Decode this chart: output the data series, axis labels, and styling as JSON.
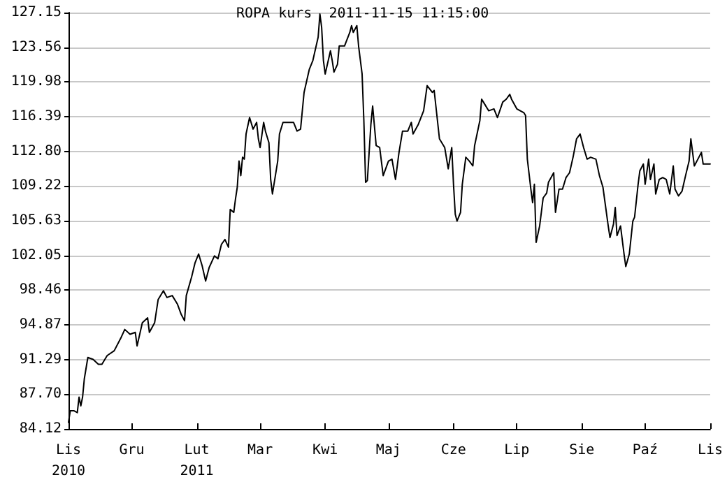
{
  "chart_data": {
    "type": "line",
    "title": "ROPA kurs  2011-11-15 11:15:00",
    "x": [
      "2010-11-15",
      "2010-11-16",
      "2010-11-18",
      "2010-11-20",
      "2010-11-21",
      "2010-11-22",
      "2010-11-23",
      "2010-11-24",
      "2010-11-26",
      "2010-11-29",
      "2010-12-02",
      "2010-12-04",
      "2010-12-07",
      "2010-12-11",
      "2010-12-15",
      "2010-12-17",
      "2010-12-20",
      "2010-12-23",
      "2010-12-24",
      "2010-12-27",
      "2010-12-30",
      "2010-12-31",
      "2011-01-03",
      "2011-01-05",
      "2011-01-08",
      "2011-01-10",
      "2011-01-13",
      "2011-01-16",
      "2011-01-18",
      "2011-01-20",
      "2011-01-21",
      "2011-01-24",
      "2011-01-26",
      "2011-01-28",
      "2011-01-30",
      "2011-02-01",
      "2011-02-03",
      "2011-02-06",
      "2011-02-08",
      "2011-02-10",
      "2011-02-12",
      "2011-02-14",
      "2011-02-15",
      "2011-02-17",
      "2011-02-18",
      "2011-02-19",
      "2011-02-20",
      "2011-02-21",
      "2011-02-22",
      "2011-02-23",
      "2011-02-24",
      "2011-02-26",
      "2011-02-28",
      "2011-03-02",
      "2011-03-03",
      "2011-03-04",
      "2011-03-06",
      "2011-03-07",
      "2011-03-09",
      "2011-03-10",
      "2011-03-11",
      "2011-03-14",
      "2011-03-15",
      "2011-03-17",
      "2011-03-23",
      "2011-03-25",
      "2011-03-27",
      "2011-03-29",
      "2011-04-01",
      "2011-04-03",
      "2011-04-06",
      "2011-04-07",
      "2011-04-08",
      "2011-04-09",
      "2011-04-10",
      "2011-04-13",
      "2011-04-14",
      "2011-04-15",
      "2011-04-17",
      "2011-04-18",
      "2011-04-21",
      "2011-04-24",
      "2011-04-25",
      "2011-04-26",
      "2011-04-28",
      "2011-04-29",
      "2011-05-01",
      "2011-05-02",
      "2011-05-03",
      "2011-05-04",
      "2011-05-06",
      "2011-05-07",
      "2011-05-09",
      "2011-05-11",
      "2011-05-13",
      "2011-05-16",
      "2011-05-18",
      "2011-05-20",
      "2011-05-22",
      "2011-05-24",
      "2011-05-27",
      "2011-05-29",
      "2011-05-30",
      "2011-06-02",
      "2011-06-05",
      "2011-06-07",
      "2011-06-10",
      "2011-06-11",
      "2011-06-14",
      "2011-06-17",
      "2011-06-19",
      "2011-06-21",
      "2011-06-22",
      "2011-06-23",
      "2011-06-24",
      "2011-06-26",
      "2011-06-27",
      "2011-06-29",
      "2011-07-01",
      "2011-07-03",
      "2011-07-04",
      "2011-07-07",
      "2011-07-08",
      "2011-07-09",
      "2011-07-12",
      "2011-07-15",
      "2011-07-17",
      "2011-07-20",
      "2011-07-22",
      "2011-07-24",
      "2011-07-25",
      "2011-07-28",
      "2011-07-30",
      "2011-08-01",
      "2011-08-02",
      "2011-08-03",
      "2011-08-05",
      "2011-08-06",
      "2011-08-07",
      "2011-08-08",
      "2011-08-10",
      "2011-08-12",
      "2011-08-14",
      "2011-08-15",
      "2011-08-18",
      "2011-08-19",
      "2011-08-21",
      "2011-08-23",
      "2011-08-25",
      "2011-08-27",
      "2011-08-29",
      "2011-08-31",
      "2011-09-02",
      "2011-09-04",
      "2011-09-06",
      "2011-09-08",
      "2011-09-11",
      "2011-09-13",
      "2011-09-15",
      "2011-09-18",
      "2011-09-19",
      "2011-09-21",
      "2011-09-22",
      "2011-09-23",
      "2011-09-25",
      "2011-09-27",
      "2011-09-28",
      "2011-09-30",
      "2011-10-02",
      "2011-10-03",
      "2011-10-05",
      "2011-10-06",
      "2011-10-08",
      "2011-10-09",
      "2011-10-11",
      "2011-10-12",
      "2011-10-14",
      "2011-10-15",
      "2011-10-17",
      "2011-10-19",
      "2011-10-21",
      "2011-10-23",
      "2011-10-25",
      "2011-10-26",
      "2011-10-28",
      "2011-10-30",
      "2011-11-01",
      "2011-11-03",
      "2011-11-04",
      "2011-11-06",
      "2011-11-08",
      "2011-11-10",
      "2011-11-11",
      "2011-11-14",
      "2011-11-15"
    ],
    "values": [
      84.8,
      86.0,
      86.0,
      85.8,
      87.4,
      86.5,
      87.4,
      89.3,
      91.5,
      91.3,
      90.8,
      90.8,
      91.7,
      92.2,
      93.6,
      94.4,
      93.9,
      94.1,
      92.7,
      95.1,
      95.6,
      94.1,
      95.1,
      97.5,
      98.4,
      97.7,
      97.9,
      97.0,
      96.0,
      95.3,
      97.9,
      99.8,
      101.3,
      102.2,
      101.0,
      99.4,
      100.8,
      102.0,
      101.7,
      103.2,
      103.7,
      102.9,
      106.8,
      106.5,
      107.9,
      109.1,
      111.8,
      110.3,
      112.2,
      112.0,
      114.6,
      116.3,
      115.1,
      115.8,
      114.1,
      113.2,
      115.8,
      114.9,
      113.7,
      109.9,
      108.4,
      111.8,
      114.6,
      115.8,
      115.8,
      114.9,
      115.1,
      118.9,
      121.3,
      122.2,
      124.6,
      127.0,
      125.6,
      122.2,
      120.8,
      123.2,
      122.2,
      121.0,
      121.8,
      123.7,
      123.7,
      125.1,
      125.8,
      125.1,
      125.8,
      123.7,
      120.8,
      116.0,
      109.6,
      109.8,
      115.6,
      117.5,
      113.4,
      113.2,
      110.3,
      111.8,
      112.0,
      109.9,
      112.7,
      114.9,
      114.9,
      115.8,
      114.6,
      115.6,
      117.0,
      119.6,
      118.9,
      119.1,
      114.1,
      113.2,
      111.0,
      113.2,
      109.4,
      106.3,
      105.6,
      106.5,
      109.4,
      112.2,
      111.8,
      111.3,
      113.4,
      116.0,
      118.2,
      117.9,
      117.0,
      117.2,
      116.3,
      117.9,
      118.2,
      118.7,
      118.2,
      117.2,
      117.0,
      116.8,
      116.5,
      112.0,
      108.9,
      107.5,
      109.4,
      103.4,
      105.1,
      108.0,
      108.5,
      109.6,
      110.6,
      106.5,
      108.9,
      108.9,
      110.1,
      110.6,
      112.2,
      114.1,
      114.6,
      113.2,
      112.0,
      112.2,
      112.0,
      110.3,
      109.1,
      105.1,
      103.9,
      105.3,
      107.0,
      104.1,
      105.1,
      102.2,
      100.9,
      102.2,
      105.6,
      106.0,
      109.4,
      110.8,
      111.5,
      109.4,
      112.0,
      109.9,
      111.5,
      108.4,
      109.9,
      110.1,
      109.9,
      108.4,
      111.3,
      108.9,
      108.2,
      108.7,
      110.3,
      111.8,
      114.1,
      111.3,
      112.0,
      112.7,
      111.5,
      111.5,
      111.5
    ],
    "color": "#000000",
    "xlim": [
      "2010-11-15",
      "2011-11-15"
    ],
    "xticks": [
      {
        "value": "2010-11-15",
        "label": "Lis\n2010"
      },
      {
        "value": "2010-12-21",
        "label": "Gru"
      },
      {
        "value": "2011-01-27",
        "label": "Lut\n2011"
      },
      {
        "value": "2011-03-04",
        "label": "Mar"
      },
      {
        "value": "2011-04-10",
        "label": "Kwi"
      },
      {
        "value": "2011-05-16",
        "label": "Maj"
      },
      {
        "value": "2011-06-22",
        "label": "Cze"
      },
      {
        "value": "2011-07-28",
        "label": "Lip"
      },
      {
        "value": "2011-09-03",
        "label": "Sie"
      },
      {
        "value": "2011-10-09",
        "label": "Paź"
      },
      {
        "value": "2011-11-15",
        "label": "Lis"
      }
    ],
    "ylim": [
      84.12,
      127.15
    ],
    "yticks": [
      84.12,
      {
        "value": 87.7,
        "label": "87.70"
      },
      91.29,
      94.87,
      98.46,
      102.05,
      105.63,
      109.22,
      {
        "value": 112.8,
        "label": "112.80"
      },
      116.39,
      119.98,
      123.56,
      127.15
    ],
    "grid": "y",
    "marker": "none",
    "line_style": "solid"
  }
}
